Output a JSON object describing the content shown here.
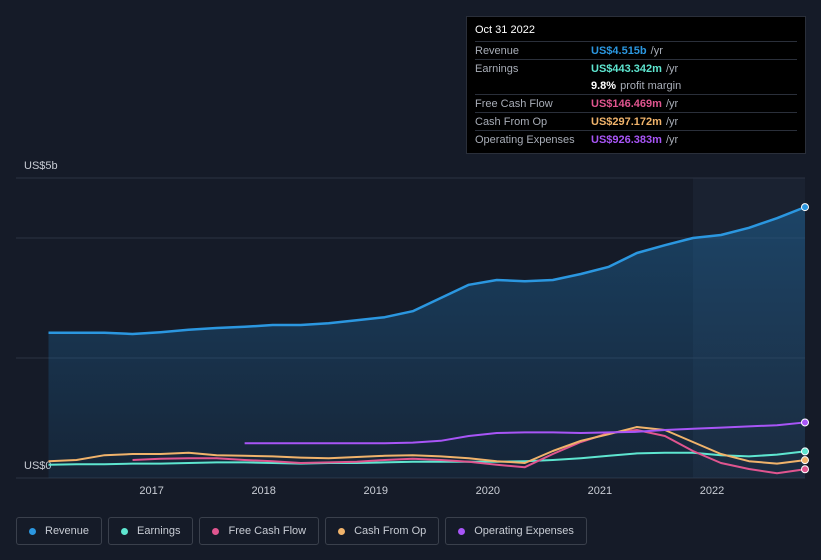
{
  "chart_data": {
    "type": "line",
    "x": [
      2016.08,
      2016.33,
      2016.58,
      2016.83,
      2017.08,
      2017.33,
      2017.58,
      2017.83,
      2018.08,
      2018.33,
      2018.58,
      2018.83,
      2019.08,
      2019.33,
      2019.58,
      2019.83,
      2020.08,
      2020.33,
      2020.58,
      2020.83,
      2021.08,
      2021.33,
      2021.58,
      2021.83,
      2022.08,
      2022.33,
      2022.58,
      2022.83
    ],
    "xlim": [
      2015.79,
      2022.83
    ],
    "xticks": [
      2017,
      2018,
      2019,
      2020,
      2021,
      2022
    ],
    "ylim": [
      0,
      5
    ],
    "yticks": [
      {
        "value": 0,
        "label": "US$0"
      },
      {
        "value": 5,
        "label": "US$5b"
      }
    ],
    "grid_values": [
      0,
      2,
      4,
      5
    ],
    "series": [
      {
        "name": "Revenue",
        "color": "#2b97e0",
        "area": true,
        "values": [
          2.42,
          2.42,
          2.42,
          2.4,
          2.43,
          2.47,
          2.5,
          2.52,
          2.55,
          2.55,
          2.58,
          2.63,
          2.68,
          2.78,
          3.0,
          3.22,
          3.3,
          3.28,
          3.3,
          3.4,
          3.52,
          3.75,
          3.88,
          4.0,
          4.05,
          4.17,
          4.33,
          4.515
        ]
      },
      {
        "name": "Earnings",
        "color": "#5ee6d0",
        "values": [
          0.22,
          0.23,
          0.23,
          0.24,
          0.24,
          0.25,
          0.26,
          0.26,
          0.25,
          0.24,
          0.25,
          0.25,
          0.26,
          0.27,
          0.27,
          0.27,
          0.27,
          0.28,
          0.3,
          0.33,
          0.37,
          0.41,
          0.42,
          0.42,
          0.38,
          0.36,
          0.39,
          0.443
        ]
      },
      {
        "name": "Free Cash Flow",
        "color": "#e0558f",
        "values": [
          null,
          null,
          null,
          0.3,
          0.32,
          0.33,
          0.33,
          0.3,
          0.28,
          0.25,
          0.26,
          0.27,
          0.3,
          0.32,
          0.3,
          0.27,
          0.22,
          0.18,
          0.4,
          0.6,
          0.75,
          0.8,
          0.7,
          0.45,
          0.25,
          0.15,
          0.08,
          0.146
        ]
      },
      {
        "name": "Cash From Op",
        "color": "#f0b36b",
        "values": [
          0.28,
          0.3,
          0.38,
          0.4,
          0.4,
          0.42,
          0.38,
          0.37,
          0.36,
          0.34,
          0.33,
          0.35,
          0.37,
          0.38,
          0.36,
          0.33,
          0.28,
          0.25,
          0.45,
          0.62,
          0.73,
          0.85,
          0.8,
          0.6,
          0.4,
          0.28,
          0.24,
          0.297
        ]
      },
      {
        "name": "Operating Expenses",
        "color": "#a855f7",
        "values": [
          null,
          null,
          null,
          null,
          null,
          null,
          null,
          0.58,
          0.58,
          0.58,
          0.58,
          0.58,
          0.58,
          0.59,
          0.62,
          0.7,
          0.75,
          0.76,
          0.76,
          0.75,
          0.76,
          0.77,
          0.8,
          0.82,
          0.84,
          0.86,
          0.88,
          0.926
        ]
      }
    ]
  },
  "tooltip": {
    "date": "Oct 31 2022",
    "rows": [
      {
        "label": "Revenue",
        "value": "US$4.515b",
        "unit": "/yr",
        "color": "#2b97e0"
      },
      {
        "label": "Earnings",
        "value": "US$443.342m",
        "unit": "/yr",
        "color": "#5ee6d0"
      },
      {
        "label": "",
        "value": "9.8%",
        "unit": "profit margin",
        "color": "#ffffff"
      },
      {
        "label": "Free Cash Flow",
        "value": "US$146.469m",
        "unit": "/yr",
        "color": "#e0558f"
      },
      {
        "label": "Cash From Op",
        "value": "US$297.172m",
        "unit": "/yr",
        "color": "#f0b36b"
      },
      {
        "label": "Operating Expenses",
        "value": "US$926.383m",
        "unit": "/yr",
        "color": "#a855f7"
      }
    ]
  }
}
